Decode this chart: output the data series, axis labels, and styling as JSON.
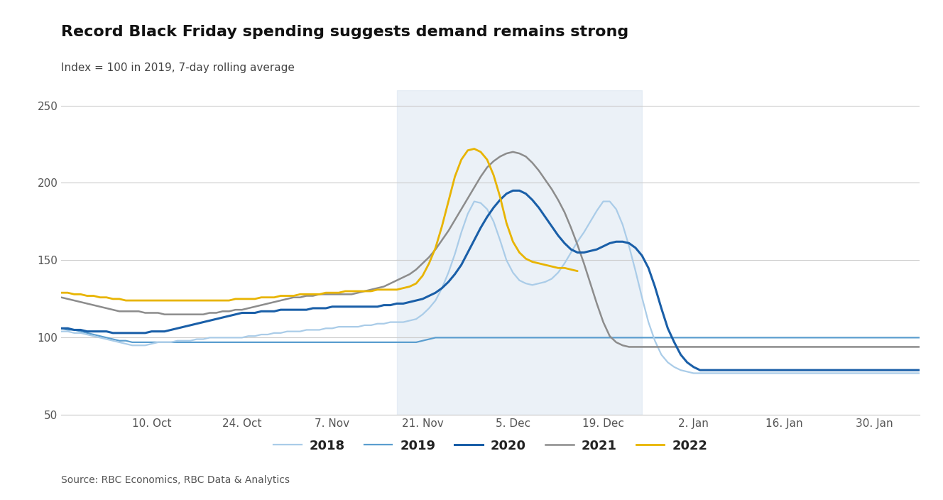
{
  "title": "Record Black Friday spending suggests demand remains strong",
  "subtitle": "Index = 100 in 2019, 7-day rolling average",
  "source": "Source: RBC Economics, RBC Data & Analytics",
  "ylim": [
    50,
    260
  ],
  "yticks": [
    50,
    100,
    150,
    200,
    250
  ],
  "background_color": "#ffffff",
  "shading_color": "#d8e4f0",
  "shading_alpha": 0.5,
  "shading_xstart": 52,
  "shading_xend": 90,
  "x_tick_labels": [
    "10. Oct",
    "24. Oct",
    "7. Nov",
    "21. Nov",
    "5. Dec",
    "19. Dec",
    "2. Jan",
    "16. Jan",
    "30. Jan"
  ],
  "x_tick_positions": [
    14,
    28,
    42,
    56,
    70,
    84,
    98,
    112,
    126
  ],
  "n_pts": 134,
  "series": {
    "2018": {
      "color": "#aacce8",
      "linewidth": 1.6,
      "y": [
        104,
        104,
        103,
        103,
        102,
        101,
        100,
        99,
        98,
        97,
        96,
        95,
        95,
        95,
        96,
        97,
        97,
        97,
        98,
        98,
        98,
        99,
        99,
        100,
        100,
        100,
        100,
        100,
        100,
        101,
        101,
        102,
        102,
        103,
        103,
        104,
        104,
        104,
        105,
        105,
        105,
        106,
        106,
        107,
        107,
        107,
        107,
        108,
        108,
        109,
        109,
        110,
        110,
        110,
        111,
        112,
        115,
        119,
        124,
        132,
        142,
        154,
        168,
        180,
        188,
        187,
        183,
        175,
        163,
        150,
        142,
        137,
        135,
        134,
        135,
        136,
        138,
        142,
        148,
        155,
        162,
        168,
        175,
        182,
        188,
        188,
        183,
        173,
        159,
        143,
        126,
        110,
        98,
        89,
        84,
        81,
        79,
        78,
        77,
        77,
        77,
        77,
        77,
        77,
        77,
        77,
        77,
        77,
        77,
        77,
        77,
        77,
        77,
        77,
        77,
        77,
        77,
        77,
        77,
        77,
        77,
        77,
        77,
        77,
        77,
        77,
        77,
        77,
        77,
        77,
        77,
        77,
        77,
        77
      ]
    },
    "2019": {
      "color": "#5b9ecf",
      "linewidth": 1.6,
      "y": [
        106,
        105,
        105,
        104,
        103,
        102,
        101,
        100,
        99,
        98,
        98,
        97,
        97,
        97,
        97,
        97,
        97,
        97,
        97,
        97,
        97,
        97,
        97,
        97,
        97,
        97,
        97,
        97,
        97,
        97,
        97,
        97,
        97,
        97,
        97,
        97,
        97,
        97,
        97,
        97,
        97,
        97,
        97,
        97,
        97,
        97,
        97,
        97,
        97,
        97,
        97,
        97,
        97,
        97,
        97,
        97,
        98,
        99,
        100,
        100,
        100,
        100,
        100,
        100,
        100,
        100,
        100,
        100,
        100,
        100,
        100,
        100,
        100,
        100,
        100,
        100,
        100,
        100,
        100,
        100,
        100,
        100,
        100,
        100,
        100,
        100,
        100,
        100,
        100,
        100,
        100,
        100,
        100,
        100,
        100,
        100,
        100,
        100,
        100,
        100,
        100,
        100,
        100,
        100,
        100,
        100,
        100,
        100,
        100,
        100,
        100,
        100,
        100,
        100,
        100,
        100,
        100,
        100,
        100,
        100,
        100,
        100,
        100,
        100,
        100,
        100,
        100,
        100,
        100,
        100,
        100,
        100,
        100,
        100
      ]
    },
    "2020": {
      "color": "#1a5fa8",
      "linewidth": 2.2,
      "y": [
        106,
        106,
        105,
        105,
        104,
        104,
        104,
        104,
        103,
        103,
        103,
        103,
        103,
        103,
        104,
        104,
        104,
        105,
        106,
        107,
        108,
        109,
        110,
        111,
        112,
        113,
        114,
        115,
        116,
        116,
        116,
        117,
        117,
        117,
        118,
        118,
        118,
        118,
        118,
        119,
        119,
        119,
        120,
        120,
        120,
        120,
        120,
        120,
        120,
        120,
        121,
        121,
        122,
        122,
        123,
        124,
        125,
        127,
        129,
        132,
        136,
        141,
        147,
        155,
        163,
        171,
        178,
        184,
        189,
        193,
        195,
        195,
        193,
        189,
        184,
        178,
        172,
        166,
        161,
        157,
        155,
        155,
        156,
        157,
        159,
        161,
        162,
        162,
        161,
        158,
        153,
        145,
        133,
        119,
        106,
        97,
        89,
        84,
        81,
        79,
        79,
        79,
        79,
        79,
        79,
        79,
        79,
        79,
        79,
        79,
        79,
        79,
        79,
        79,
        79,
        79,
        79,
        79,
        79,
        79,
        79,
        79,
        79,
        79,
        79,
        79,
        79,
        79,
        79,
        79,
        79,
        79,
        79,
        79
      ]
    },
    "2021": {
      "color": "#8c8c8c",
      "linewidth": 1.8,
      "y": [
        126,
        125,
        124,
        123,
        122,
        121,
        120,
        119,
        118,
        117,
        117,
        117,
        117,
        116,
        116,
        116,
        115,
        115,
        115,
        115,
        115,
        115,
        115,
        116,
        116,
        117,
        117,
        118,
        118,
        119,
        120,
        121,
        122,
        123,
        124,
        125,
        126,
        126,
        127,
        127,
        128,
        128,
        128,
        128,
        128,
        128,
        129,
        130,
        131,
        132,
        133,
        135,
        137,
        139,
        141,
        144,
        148,
        152,
        157,
        163,
        169,
        176,
        183,
        190,
        197,
        204,
        210,
        214,
        217,
        219,
        220,
        219,
        217,
        213,
        208,
        202,
        196,
        189,
        181,
        171,
        160,
        148,
        135,
        122,
        110,
        101,
        97,
        95,
        94,
        94,
        94,
        94,
        94,
        94,
        94,
        94,
        94,
        94,
        94,
        94,
        94,
        94,
        94,
        94,
        94,
        94,
        94,
        94,
        94,
        94,
        94,
        94,
        94,
        94,
        94,
        94,
        94,
        94,
        94,
        94,
        94,
        94,
        94,
        94,
        94,
        94,
        94,
        94,
        94,
        94,
        94,
        94,
        94,
        94
      ]
    },
    "2022": {
      "color": "#e8b400",
      "linewidth": 2.0,
      "y": [
        129,
        129,
        128,
        128,
        127,
        127,
        126,
        126,
        125,
        125,
        124,
        124,
        124,
        124,
        124,
        124,
        124,
        124,
        124,
        124,
        124,
        124,
        124,
        124,
        124,
        124,
        124,
        125,
        125,
        125,
        125,
        126,
        126,
        126,
        127,
        127,
        127,
        128,
        128,
        128,
        128,
        129,
        129,
        129,
        130,
        130,
        130,
        130,
        130,
        131,
        131,
        131,
        131,
        132,
        133,
        135,
        140,
        148,
        158,
        172,
        188,
        204,
        215,
        221,
        222,
        220,
        215,
        205,
        191,
        174,
        162,
        155,
        151,
        149,
        148,
        147,
        146,
        145,
        145,
        144,
        143,
        null,
        null,
        null,
        null,
        null,
        null,
        null,
        null,
        null,
        null,
        null,
        null,
        null,
        null,
        null,
        null,
        null,
        null,
        null,
        null,
        null,
        null,
        null,
        null,
        null,
        null,
        null,
        null,
        null,
        null,
        null,
        null,
        null,
        null,
        null,
        null,
        null,
        null,
        null,
        null,
        null,
        null,
        null,
        null,
        null,
        null,
        null,
        null,
        null,
        null,
        null,
        null,
        null
      ]
    }
  },
  "legend_order": [
    "2018",
    "2019",
    "2020",
    "2021",
    "2022"
  ],
  "title_fontsize": 16,
  "subtitle_fontsize": 11,
  "source_fontsize": 10,
  "tick_fontsize": 11,
  "legend_fontsize": 13
}
